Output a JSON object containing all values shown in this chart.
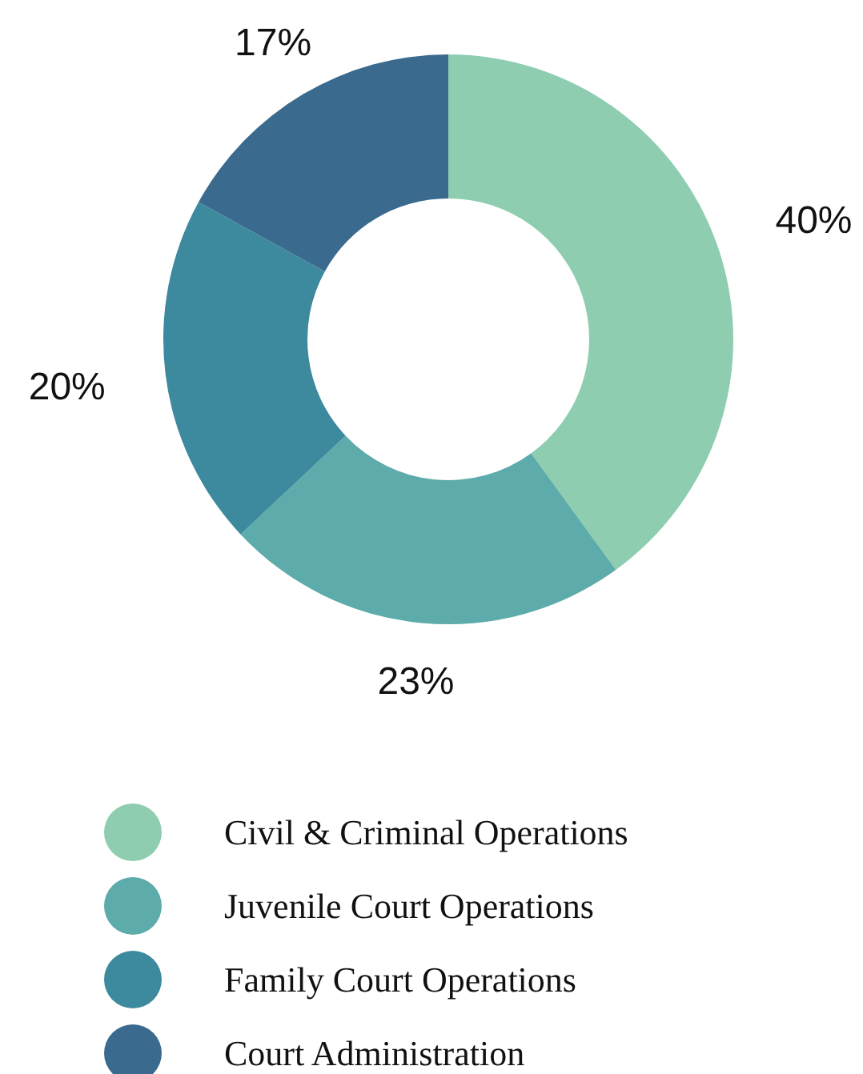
{
  "chart_data": {
    "type": "donut",
    "categories": [
      "Civil & Criminal Operations",
      "Juvenile Court Operations",
      "Family Court Operations",
      "Court Administration"
    ],
    "values": [
      40,
      23,
      20,
      17
    ],
    "colors": [
      "#8ecdb0",
      "#5dabaa",
      "#3d8a9e",
      "#3a6a8e"
    ],
    "value_labels": [
      "40%",
      "23%",
      "20%",
      "17%"
    ],
    "legend": "bottom"
  }
}
